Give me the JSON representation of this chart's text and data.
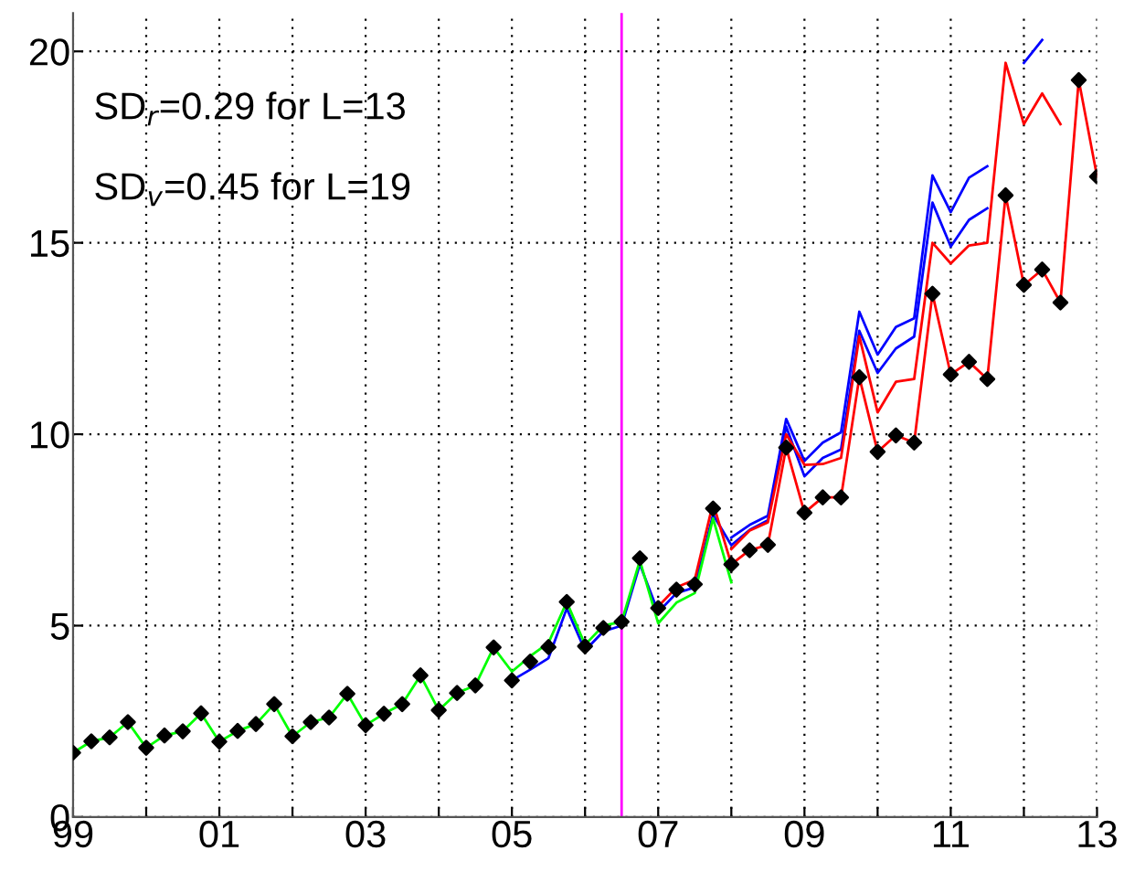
{
  "chart_data": {
    "type": "line",
    "xlim": [
      1999,
      2013
    ],
    "ylim": [
      0,
      21
    ],
    "xticks": [
      {
        "value": 1999,
        "label": "99"
      },
      {
        "value": 2000,
        "label": null
      },
      {
        "value": 2001,
        "label": "01"
      },
      {
        "value": 2002,
        "label": null
      },
      {
        "value": 2003,
        "label": "03"
      },
      {
        "value": 2004,
        "label": null
      },
      {
        "value": 2005,
        "label": "05"
      },
      {
        "value": 2006,
        "label": null
      },
      {
        "value": 2007,
        "label": "07"
      },
      {
        "value": 2008,
        "label": null
      },
      {
        "value": 2009,
        "label": "09"
      },
      {
        "value": 2010,
        "label": null
      },
      {
        "value": 2011,
        "label": "11"
      },
      {
        "value": 2012,
        "label": null
      },
      {
        "value": 2013,
        "label": "13"
      }
    ],
    "yticks": [
      0,
      5,
      10,
      15,
      20
    ],
    "grid": true,
    "line_style": "solid",
    "ref_lines": [
      {
        "axis": "x",
        "value": 2006.5,
        "color": "#ff00ff",
        "line_style": "solid"
      }
    ],
    "annotations": [
      "SD$_{r}$=0.29 for L=13",
      "SD$_{v}$=0.45 for L=19"
    ],
    "series": [
      {
        "color": "#0000ff",
        "x": [
          2005,
          2005.25,
          2005.5,
          2005.75,
          2006,
          2006.25,
          2006.5,
          2006.75,
          2007,
          2007.25,
          2007.5,
          2007.75,
          2008,
          2008.25,
          2008.5,
          2008.75,
          2009,
          2009.25,
          2009.5,
          2009.75,
          2010,
          2010.25,
          2010.5,
          2010.75,
          2011,
          2011.25,
          2011.5,
          2011.75,
          2012,
          2012.25
        ],
        "values": [
          3.57,
          3.85,
          4.15,
          5.45,
          4.35,
          4.85,
          5.0,
          6.6,
          5.35,
          5.85,
          6.0,
          7.9,
          7.1,
          7.5,
          7.75,
          10.2,
          8.9,
          9.38,
          9.6,
          12.7,
          11.6,
          12.24,
          12.55,
          16.05,
          14.9,
          15.6,
          15.9,
          null,
          19.7,
          20.3
        ]
      },
      {
        "color": "#0000ff",
        "x": [
          2008,
          2008.25,
          2008.5,
          2008.75,
          2009,
          2009.25,
          2009.5,
          2009.75,
          2010,
          2010.25,
          2010.5,
          2010.75,
          2011,
          2011.25,
          2011.5
        ],
        "values": [
          7.3,
          7.63,
          7.87,
          10.4,
          9.3,
          9.78,
          10.05,
          13.2,
          12.08,
          12.8,
          13.03,
          16.76,
          15.8,
          16.7,
          17.0
        ]
      },
      {
        "color": "#ff0000",
        "x": [
          2008,
          2008.25,
          2008.5,
          2008.75,
          2009,
          2009.25,
          2009.5,
          2009.75,
          2010,
          2010.25,
          2010.5,
          2010.75,
          2011,
          2011.25,
          2011.5,
          2011.75,
          2012,
          2012.25,
          2012.5
        ],
        "values": [
          7.0,
          7.48,
          7.7,
          10.0,
          9.2,
          9.22,
          9.38,
          12.56,
          10.57,
          11.37,
          11.44,
          15.0,
          14.46,
          14.93,
          15.0,
          19.7,
          18.1,
          18.9,
          18.1
        ]
      },
      {
        "color": "#ff0000",
        "x": [
          2007,
          2007.25,
          2007.5,
          2007.75,
          2008,
          2008.25,
          2008.5,
          2008.75,
          2009,
          2009.25,
          2009.5,
          2009.75,
          2010,
          2010.25,
          2010.5,
          2010.75,
          2011,
          2011.25,
          2011.5,
          2011.75,
          2012,
          2012.25,
          2012.5,
          2012.75,
          2013
        ],
        "values": [
          5.5,
          6.0,
          6.2,
          8.2,
          6.6,
          6.97,
          7.11,
          9.65,
          7.95,
          8.35,
          8.35,
          11.49,
          9.54,
          9.97,
          9.78,
          13.67,
          11.56,
          11.89,
          11.44,
          16.24,
          13.9,
          14.3,
          13.44,
          19.25,
          16.73
        ]
      },
      {
        "color": "#00ff00",
        "x": [
          1999,
          1999.25,
          1999.5,
          1999.75,
          2000,
          2000.25,
          2000.5,
          2000.75,
          2001,
          2001.25,
          2001.5,
          2001.75,
          2002,
          2002.25,
          2002.5,
          2002.75,
          2003,
          2003.25,
          2003.5,
          2003.75,
          2004,
          2004.25,
          2004.5,
          2004.75,
          2005,
          2005.25,
          2005.5,
          2005.75,
          2006,
          2006.25,
          2006.5,
          2006.75,
          2007,
          2007.25,
          2007.5,
          2007.75,
          2008
        ],
        "values": [
          1.68,
          1.98,
          2.08,
          2.48,
          1.81,
          2.13,
          2.24,
          2.71,
          1.97,
          2.25,
          2.43,
          2.95,
          2.11,
          2.48,
          2.6,
          3.22,
          2.4,
          2.7,
          2.95,
          3.7,
          2.79,
          3.24,
          3.44,
          4.43,
          3.8,
          4.2,
          4.55,
          5.62,
          4.5,
          5.0,
          5.1,
          6.7,
          5.06,
          5.6,
          5.85,
          7.8,
          6.13
        ]
      },
      {
        "type": "scatter",
        "marker": "diamond",
        "color": "#000000",
        "x": [
          1999,
          1999.25,
          1999.5,
          1999.75,
          2000,
          2000.25,
          2000.5,
          2000.75,
          2001,
          2001.25,
          2001.5,
          2001.75,
          2002,
          2002.25,
          2002.5,
          2002.75,
          2003,
          2003.25,
          2003.5,
          2003.75,
          2004,
          2004.25,
          2004.5,
          2004.75,
          2005,
          2005.25,
          2005.5,
          2005.75,
          2006,
          2006.25,
          2006.5,
          2006.75,
          2007,
          2007.25,
          2007.5,
          2007.75,
          2008,
          2008.25,
          2008.5,
          2008.75,
          2009,
          2009.25,
          2009.5,
          2009.75,
          2010,
          2010.25,
          2010.5,
          2010.75,
          2011,
          2011.25,
          2011.5,
          2011.75,
          2012,
          2012.25,
          2012.5,
          2012.75,
          2013
        ],
        "values": [
          1.68,
          1.98,
          2.08,
          2.48,
          1.81,
          2.13,
          2.24,
          2.71,
          1.97,
          2.25,
          2.43,
          2.95,
          2.11,
          2.48,
          2.6,
          3.22,
          2.4,
          2.7,
          2.95,
          3.7,
          2.79,
          3.24,
          3.44,
          4.43,
          3.57,
          4.06,
          4.44,
          5.62,
          4.46,
          4.94,
          5.1,
          6.76,
          5.46,
          5.94,
          6.08,
          8.06,
          6.6,
          6.97,
          7.11,
          9.65,
          7.95,
          8.35,
          8.35,
          11.49,
          9.54,
          9.97,
          9.78,
          13.67,
          11.56,
          11.89,
          11.44,
          16.24,
          13.9,
          14.3,
          13.44,
          19.25,
          16.73
        ]
      }
    ]
  }
}
